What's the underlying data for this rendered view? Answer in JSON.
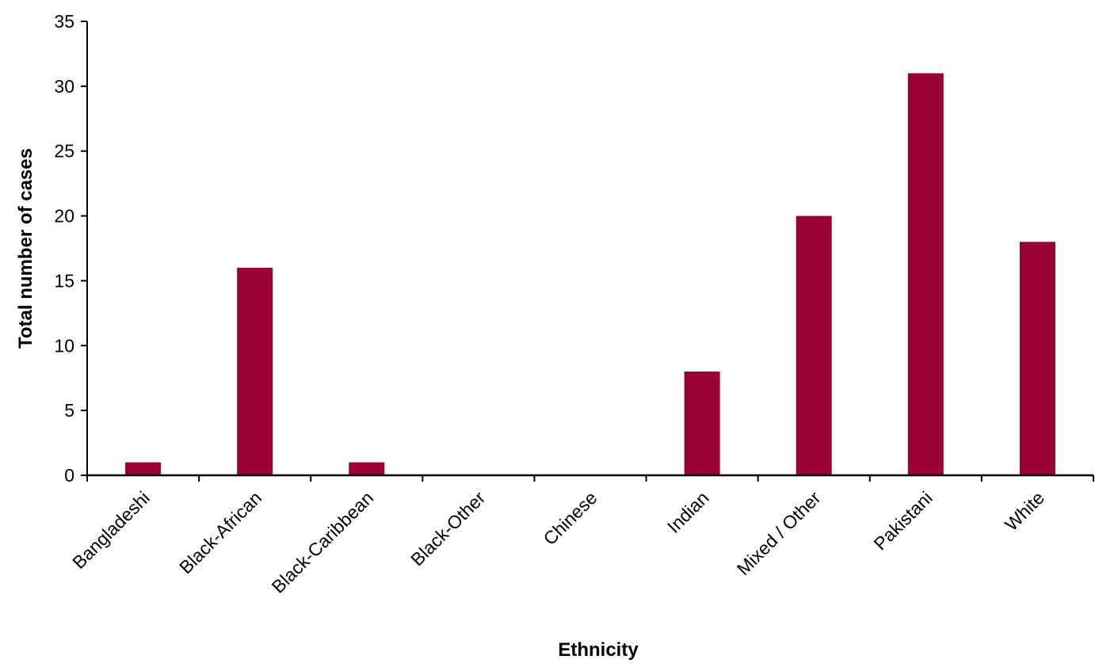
{
  "chart_data": {
    "type": "bar",
    "title": "",
    "xlabel": "Ethnicity",
    "ylabel": "Total number of cases",
    "categories": [
      "Bangladeshi",
      "Black-African",
      "Black-Caribbean",
      "Black-Other",
      "Chinese",
      "Indian",
      "Mixed / Other",
      "Pakistani",
      "White"
    ],
    "values": [
      1,
      16,
      1,
      0,
      0,
      8,
      20,
      31,
      18
    ],
    "ylim": [
      0,
      35
    ],
    "yticks": [
      0,
      5,
      10,
      15,
      20,
      25,
      30,
      35
    ],
    "grid": false,
    "legend": "none",
    "colors": {
      "bar": "#990033",
      "axis": "#000000"
    }
  }
}
